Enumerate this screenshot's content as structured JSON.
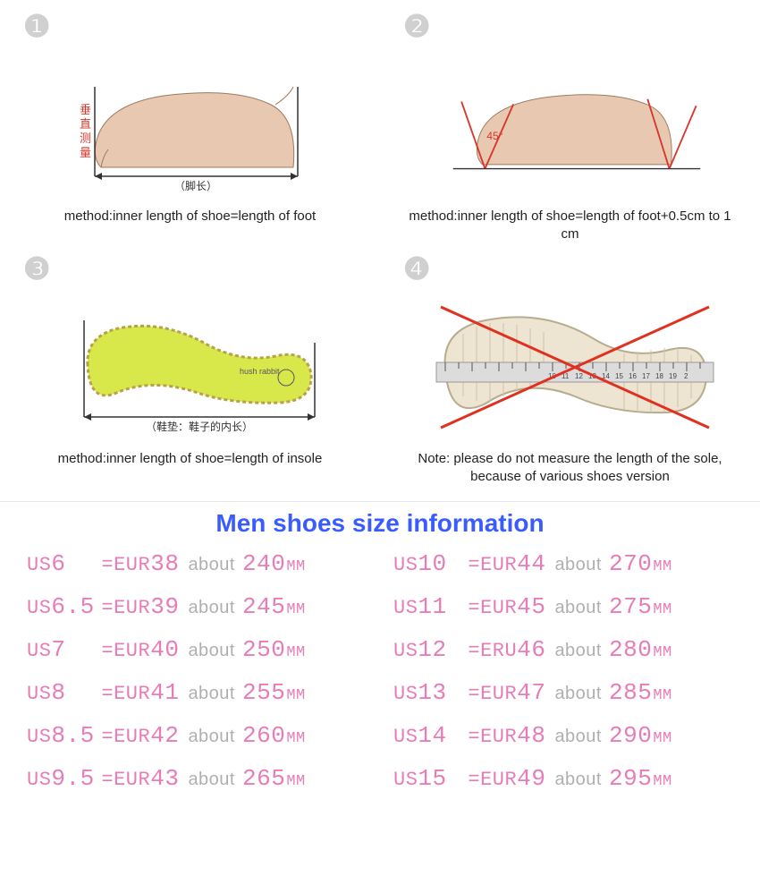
{
  "colors": {
    "title_blue": "#3a5cff",
    "pink": "#e77db8",
    "grey": "#b0b0b0",
    "num_grey": "#cfcfcf",
    "caption": "#222222",
    "insole_fill": "#d8e84a",
    "insole_stroke": "#b7a14a",
    "foot_skin": "#e8c8b0",
    "foot_line": "#555555",
    "red_line": "#d43a2f",
    "sole_fill": "#ede5d2",
    "sole_ridge": "#cfc4a8",
    "ruler_fill": "#dcdcdc",
    "cross_red": "#e03020"
  },
  "methods": [
    {
      "num": "❶",
      "caption": "method:inner length of shoe=length of foot"
    },
    {
      "num": "❷",
      "caption": "method:inner length of shoe=length of foot+0.5cm to 1 cm"
    },
    {
      "num": "❸",
      "caption": "method:inner length of shoe=length of insole"
    },
    {
      "num": "❹",
      "caption": "Note: please do not measure the length of the sole,\nbecause of various shoes version"
    }
  ],
  "diagram_labels": {
    "foot_length_cn": "（脚长）",
    "vertical_cn": "垂直测量",
    "angle": "45°",
    "insole_label_cn": "（鞋垫：鞋子的内长）",
    "insole_brand": "hush rabbit"
  },
  "size_title": "Men shoes size information",
  "size_table": {
    "us_prefix": "US",
    "eur_prefix": "EUR",
    "about_word": "about",
    "mm_unit": "MM",
    "left": [
      {
        "us": "6",
        "eur_prefix": "EUR",
        "eur": "38",
        "mm": "240"
      },
      {
        "us": "6.5",
        "eur_prefix": "EUR",
        "eur": "39",
        "mm": "245"
      },
      {
        "us": "7",
        "eur_prefix": "EUR",
        "eur": "40",
        "mm": "250"
      },
      {
        "us": "8",
        "eur_prefix": "EUR",
        "eur": "41",
        "mm": "255"
      },
      {
        "us": "8.5",
        "eur_prefix": "EUR",
        "eur": "42",
        "mm": "260"
      },
      {
        "us": "9.5",
        "eur_prefix": "EUR",
        "eur": "43",
        "mm": "265"
      }
    ],
    "right": [
      {
        "us": "10",
        "eur_prefix": "EUR",
        "eur": "44",
        "mm": "270"
      },
      {
        "us": "11",
        "eur_prefix": "EUR",
        "eur": "45",
        "mm": "275"
      },
      {
        "us": "12",
        "eur_prefix": "ERU",
        "eur": "46",
        "mm": "280"
      },
      {
        "us": "13",
        "eur_prefix": "EUR",
        "eur": "47",
        "mm": "285"
      },
      {
        "us": "14",
        "eur_prefix": "EUR",
        "eur": "48",
        "mm": "290"
      },
      {
        "us": "15",
        "eur_prefix": "EUR",
        "eur": "49",
        "mm": "295"
      }
    ]
  }
}
